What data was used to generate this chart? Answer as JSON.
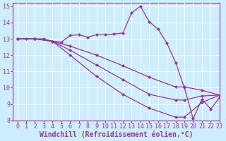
{
  "xlabel": "Windchill (Refroidissement éolien,°C)",
  "bg_color": "#cceeff",
  "line_color": "#993399",
  "grid_color": "#ffffff",
  "xlim": [
    -0.5,
    23
  ],
  "ylim": [
    8,
    15.2
  ],
  "yticks": [
    8,
    9,
    10,
    11,
    12,
    13,
    14,
    15
  ],
  "xticks": [
    0,
    1,
    2,
    3,
    4,
    5,
    6,
    7,
    8,
    9,
    10,
    11,
    12,
    13,
    14,
    15,
    16,
    17,
    18,
    19,
    20,
    21,
    22,
    23
  ],
  "lines": [
    {
      "x": [
        0,
        1,
        2,
        3,
        4,
        5,
        6,
        7,
        8,
        9,
        10,
        11,
        12,
        13,
        14,
        15,
        16,
        17,
        18,
        19,
        20,
        21,
        22,
        23
      ],
      "y": [
        13,
        13,
        13,
        13,
        12.85,
        12.8,
        13.2,
        13.25,
        13.1,
        13.25,
        13.25,
        13.3,
        13.35,
        14.6,
        15.0,
        14.05,
        13.6,
        12.75,
        11.55,
        10.0,
        8.1,
        9.3,
        8.7,
        9.4
      ]
    },
    {
      "x": [
        0,
        2,
        4,
        6,
        9,
        12,
        15,
        18,
        19,
        21,
        23
      ],
      "y": [
        13,
        13,
        12.85,
        12.55,
        12.0,
        11.35,
        10.65,
        10.05,
        10.05,
        9.85,
        9.55
      ]
    },
    {
      "x": [
        0,
        2,
        4,
        6,
        9,
        12,
        15,
        18,
        19,
        21,
        23
      ],
      "y": [
        13,
        13,
        12.85,
        12.3,
        11.4,
        10.5,
        9.6,
        9.25,
        9.25,
        9.5,
        9.55
      ]
    },
    {
      "x": [
        0,
        2,
        4,
        6,
        9,
        12,
        15,
        18,
        19,
        21,
        23
      ],
      "y": [
        13,
        13,
        12.85,
        12.0,
        10.7,
        9.6,
        8.75,
        8.2,
        8.2,
        9.1,
        9.55
      ]
    }
  ],
  "marker": "D",
  "markersize": 2.0,
  "linewidth": 0.9,
  "tick_fontsize": 6.0,
  "xlabel_fontsize": 7.0
}
